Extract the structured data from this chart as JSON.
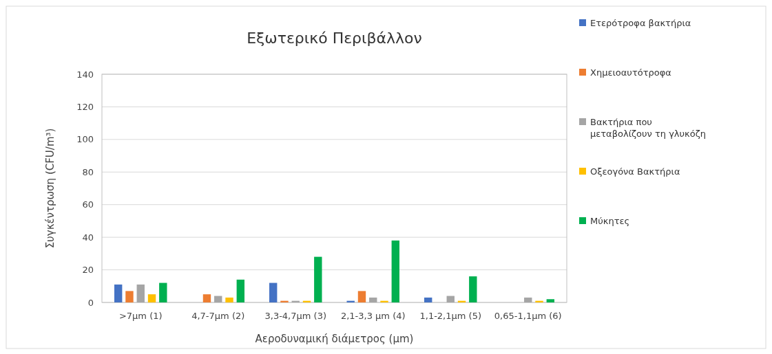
{
  "chart_data": {
    "type": "bar",
    "title": "Εξωτερικό Περιβάλλον",
    "xlabel": "Αεροδυναμική διάμετρος (μm)",
    "ylabel": "Συγκέντρωση (CFU/m³)",
    "categories": [
      ">7μm (1)",
      "4,7-7μm (2)",
      "3,3-4,7μm (3)",
      "2,1-3,3 μm (4)",
      "1,1-2,1μm (5)",
      "0,65-1,1μm (6)"
    ],
    "series": [
      {
        "name": "Ετερότροφα βακτήρια",
        "color": "#4472c4",
        "values": [
          11,
          0,
          12,
          1,
          3,
          0
        ]
      },
      {
        "name": "Χημειοαυτότροφα",
        "color": "#ed7d31",
        "values": [
          7,
          5,
          1,
          7,
          0,
          0
        ]
      },
      {
        "name": "Βακτήρια που μεταβολίζουν τη γλυκόζη",
        "color": "#a5a5a5",
        "values": [
          11,
          4,
          1,
          3,
          4,
          3
        ]
      },
      {
        "name": "Οξεογόνα Βακτήρια",
        "color": "#ffc000",
        "values": [
          5,
          3,
          1,
          1,
          1,
          1
        ]
      },
      {
        "name": "Μύκητες",
        "color": "#00b050",
        "values": [
          12,
          14,
          28,
          38,
          16,
          2
        ]
      }
    ],
    "ylim": [
      0,
      140
    ],
    "yticks": [
      0,
      20,
      40,
      60,
      80,
      100,
      120,
      140
    ],
    "grid": "y",
    "legend": "right"
  }
}
